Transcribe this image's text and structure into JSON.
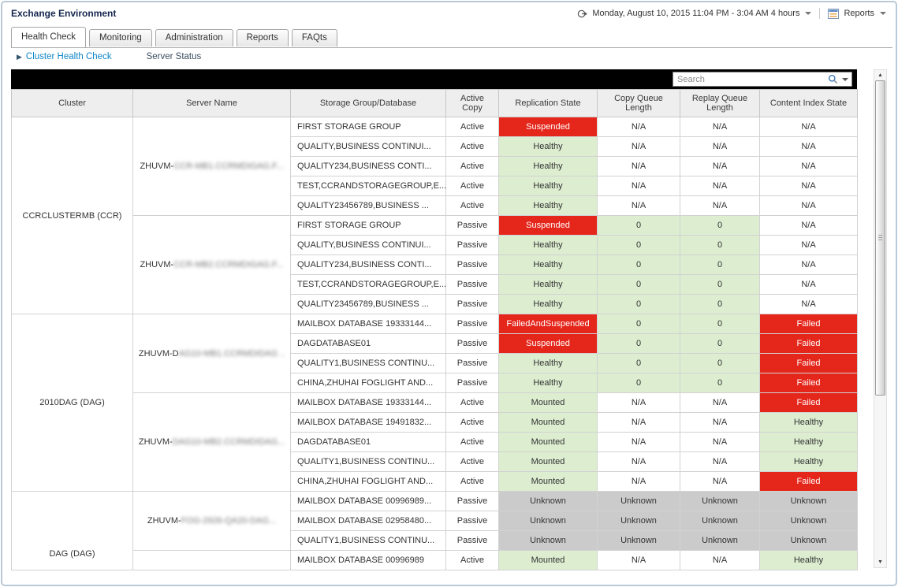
{
  "window": {
    "title": "Exchange Environment"
  },
  "topbar": {
    "time_range": "Monday, August 10, 2015 11:04 PM - 3:04 AM 4 hours",
    "reports_label": "Reports"
  },
  "tabs": {
    "items": [
      {
        "label": "Health Check",
        "active": true
      },
      {
        "label": "Monitoring",
        "active": false
      },
      {
        "label": "Administration",
        "active": false
      },
      {
        "label": "Reports",
        "active": false
      },
      {
        "label": "FAQts",
        "active": false
      }
    ]
  },
  "subnav": {
    "primary": "Cluster Health Check",
    "secondary": "Server Status"
  },
  "search": {
    "placeholder": "Search"
  },
  "status_colors": {
    "red": "#e4261b",
    "green": "#dcedd0",
    "gray": "#cbcbcb"
  },
  "table": {
    "columns": [
      "Cluster",
      "Server Name",
      "Storage Group/Database",
      "Active Copy",
      "Replication State",
      "Copy Queue Length",
      "Replay Queue Length",
      "Content Index State"
    ],
    "clusters": [
      {
        "label": "CCRCLUSTERMB (CCR)",
        "align": "middle",
        "servers": [
          {
            "prefix": "ZHUVM-",
            "blurred": "CCR-MB1.CCRMDIGAG.F...",
            "rows": [
              {
                "db": "FIRST STORAGE GROUP",
                "copy": "Active",
                "replication": {
                  "text": "Suspended",
                  "state": "red"
                },
                "copy_queue": {
                  "text": "N/A",
                  "state": "plain"
                },
                "replay_queue": {
                  "text": "N/A",
                  "state": "plain"
                },
                "content_index": {
                  "text": "N/A",
                  "state": "plain"
                }
              },
              {
                "db": "QUALITY,BUSINESS CONTINUI...",
                "copy": "Active",
                "replication": {
                  "text": "Healthy",
                  "state": "green"
                },
                "copy_queue": {
                  "text": "N/A",
                  "state": "plain"
                },
                "replay_queue": {
                  "text": "N/A",
                  "state": "plain"
                },
                "content_index": {
                  "text": "N/A",
                  "state": "plain"
                }
              },
              {
                "db": "QUALITY234,BUSINESS CONTI...",
                "copy": "Active",
                "replication": {
                  "text": "Healthy",
                  "state": "green"
                },
                "copy_queue": {
                  "text": "N/A",
                  "state": "plain"
                },
                "replay_queue": {
                  "text": "N/A",
                  "state": "plain"
                },
                "content_index": {
                  "text": "N/A",
                  "state": "plain"
                }
              },
              {
                "db": "TEST,CCRANDSTORAGEGROUP,E...",
                "copy": "Active",
                "replication": {
                  "text": "Healthy",
                  "state": "green"
                },
                "copy_queue": {
                  "text": "N/A",
                  "state": "plain"
                },
                "replay_queue": {
                  "text": "N/A",
                  "state": "plain"
                },
                "content_index": {
                  "text": "N/A",
                  "state": "plain"
                }
              },
              {
                "db": "QUALITY23456789,BUSINESS ...",
                "copy": "Active",
                "replication": {
                  "text": "Healthy",
                  "state": "green"
                },
                "copy_queue": {
                  "text": "N/A",
                  "state": "plain"
                },
                "replay_queue": {
                  "text": "N/A",
                  "state": "plain"
                },
                "content_index": {
                  "text": "N/A",
                  "state": "plain"
                }
              }
            ]
          },
          {
            "prefix": "ZHUVM-",
            "blurred": "CCR-MB2.CCRMDIGAG.F...",
            "rows": [
              {
                "db": "FIRST STORAGE GROUP",
                "copy": "Passive",
                "replication": {
                  "text": "Suspended",
                  "state": "red"
                },
                "copy_queue": {
                  "text": "0",
                  "state": "green"
                },
                "replay_queue": {
                  "text": "0",
                  "state": "green"
                },
                "content_index": {
                  "text": "N/A",
                  "state": "plain"
                }
              },
              {
                "db": "QUALITY,BUSINESS CONTINUI...",
                "copy": "Passive",
                "replication": {
                  "text": "Healthy",
                  "state": "green"
                },
                "copy_queue": {
                  "text": "0",
                  "state": "green"
                },
                "replay_queue": {
                  "text": "0",
                  "state": "green"
                },
                "content_index": {
                  "text": "N/A",
                  "state": "plain"
                }
              },
              {
                "db": "QUALITY234,BUSINESS CONTI...",
                "copy": "Passive",
                "replication": {
                  "text": "Healthy",
                  "state": "green"
                },
                "copy_queue": {
                  "text": "0",
                  "state": "green"
                },
                "replay_queue": {
                  "text": "0",
                  "state": "green"
                },
                "content_index": {
                  "text": "N/A",
                  "state": "plain"
                }
              },
              {
                "db": "TEST,CCRANDSTORAGEGROUP,E...",
                "copy": "Passive",
                "replication": {
                  "text": "Healthy",
                  "state": "green"
                },
                "copy_queue": {
                  "text": "0",
                  "state": "green"
                },
                "replay_queue": {
                  "text": "0",
                  "state": "green"
                },
                "content_index": {
                  "text": "N/A",
                  "state": "plain"
                }
              },
              {
                "db": "QUALITY23456789,BUSINESS ...",
                "copy": "Passive",
                "replication": {
                  "text": "Healthy",
                  "state": "green"
                },
                "copy_queue": {
                  "text": "0",
                  "state": "green"
                },
                "replay_queue": {
                  "text": "0",
                  "state": "green"
                },
                "content_index": {
                  "text": "N/A",
                  "state": "plain"
                }
              }
            ]
          }
        ]
      },
      {
        "label": "2010DAG (DAG)",
        "align": "middle",
        "servers": [
          {
            "prefix": "ZHUVM-D",
            "blurred": "AG10-MB1.CCRMDIDAG ..",
            "rows": [
              {
                "db": "MAILBOX DATABASE 19333144...",
                "copy": "Passive",
                "replication": {
                  "text": "FailedAndSuspended",
                  "state": "red"
                },
                "copy_queue": {
                  "text": "0",
                  "state": "green"
                },
                "replay_queue": {
                  "text": "0",
                  "state": "green"
                },
                "content_index": {
                  "text": "Failed",
                  "state": "red"
                }
              },
              {
                "db": "DAGDATABASE01",
                "copy": "Passive",
                "replication": {
                  "text": "Suspended",
                  "state": "red"
                },
                "copy_queue": {
                  "text": "0",
                  "state": "green"
                },
                "replay_queue": {
                  "text": "0",
                  "state": "green"
                },
                "content_index": {
                  "text": "Failed",
                  "state": "red"
                }
              },
              {
                "db": "QUALITY1,BUSINESS CONTINU...",
                "copy": "Passive",
                "replication": {
                  "text": "Healthy",
                  "state": "green"
                },
                "copy_queue": {
                  "text": "0",
                  "state": "green"
                },
                "replay_queue": {
                  "text": "0",
                  "state": "green"
                },
                "content_index": {
                  "text": "Failed",
                  "state": "red"
                }
              },
              {
                "db": "CHINA,ZHUHAI FOGLIGHT AND...",
                "copy": "Passive",
                "replication": {
                  "text": "Healthy",
                  "state": "green"
                },
                "copy_queue": {
                  "text": "0",
                  "state": "green"
                },
                "replay_queue": {
                  "text": "0",
                  "state": "green"
                },
                "content_index": {
                  "text": "Failed",
                  "state": "red"
                }
              }
            ]
          },
          {
            "prefix": "ZHUVM-",
            "blurred": "DAG10-MB2.CCRMDIDAG...",
            "rows": [
              {
                "db": "MAILBOX DATABASE 19333144...",
                "copy": "Active",
                "replication": {
                  "text": "Mounted",
                  "state": "green"
                },
                "copy_queue": {
                  "text": "N/A",
                  "state": "plain"
                },
                "replay_queue": {
                  "text": "N/A",
                  "state": "plain"
                },
                "content_index": {
                  "text": "Failed",
                  "state": "red"
                }
              },
              {
                "db": "MAILBOX DATABASE 19491832...",
                "copy": "Active",
                "replication": {
                  "text": "Mounted",
                  "state": "green"
                },
                "copy_queue": {
                  "text": "N/A",
                  "state": "plain"
                },
                "replay_queue": {
                  "text": "N/A",
                  "state": "plain"
                },
                "content_index": {
                  "text": "Healthy",
                  "state": "green"
                }
              },
              {
                "db": "DAGDATABASE01",
                "copy": "Active",
                "replication": {
                  "text": "Mounted",
                  "state": "green"
                },
                "copy_queue": {
                  "text": "N/A",
                  "state": "plain"
                },
                "replay_queue": {
                  "text": "N/A",
                  "state": "plain"
                },
                "content_index": {
                  "text": "Healthy",
                  "state": "green"
                }
              },
              {
                "db": "QUALITY1,BUSINESS CONTINU...",
                "copy": "Active",
                "replication": {
                  "text": "Mounted",
                  "state": "green"
                },
                "copy_queue": {
                  "text": "N/A",
                  "state": "plain"
                },
                "replay_queue": {
                  "text": "N/A",
                  "state": "plain"
                },
                "content_index": {
                  "text": "Healthy",
                  "state": "green"
                }
              },
              {
                "db": "CHINA,ZHUHAI FOGLIGHT AND...",
                "copy": "Active",
                "replication": {
                  "text": "Mounted",
                  "state": "green"
                },
                "copy_queue": {
                  "text": "N/A",
                  "state": "plain"
                },
                "replay_queue": {
                  "text": "N/A",
                  "state": "plain"
                },
                "content_index": {
                  "text": "Failed",
                  "state": "red"
                }
              }
            ]
          }
        ]
      },
      {
        "label": "DAG (DAG)",
        "align": "bottom",
        "servers": [
          {
            "prefix": "ZHUVM-",
            "blurred": "FOG-2926-QA20-DAG...",
            "rows": [
              {
                "db": "MAILBOX DATABASE 00996989...",
                "copy": "Passive",
                "replication": {
                  "text": "Unknown",
                  "state": "gray"
                },
                "copy_queue": {
                  "text": "Unknown",
                  "state": "gray"
                },
                "replay_queue": {
                  "text": "Unknown",
                  "state": "gray"
                },
                "content_index": {
                  "text": "Unknown",
                  "state": "gray"
                }
              },
              {
                "db": "MAILBOX DATABASE 02958480...",
                "copy": "Passive",
                "replication": {
                  "text": "Unknown",
                  "state": "gray"
                },
                "copy_queue": {
                  "text": "Unknown",
                  "state": "gray"
                },
                "replay_queue": {
                  "text": "Unknown",
                  "state": "gray"
                },
                "content_index": {
                  "text": "Unknown",
                  "state": "gray"
                }
              },
              {
                "db": "QUALITY1,BUSINESS CONTINU...",
                "copy": "Passive",
                "replication": {
                  "text": "Unknown",
                  "state": "gray"
                },
                "copy_queue": {
                  "text": "Unknown",
                  "state": "gray"
                },
                "replay_queue": {
                  "text": "Unknown",
                  "state": "gray"
                },
                "content_index": {
                  "text": "Unknown",
                  "state": "gray"
                }
              }
            ]
          },
          {
            "prefix": "",
            "blurred": "",
            "rows": [
              {
                "db": "MAILBOX DATABASE 00996989",
                "copy": "Active",
                "replication": {
                  "text": "Mounted",
                  "state": "green"
                },
                "copy_queue": {
                  "text": "N/A",
                  "state": "plain"
                },
                "replay_queue": {
                  "text": "N/A",
                  "state": "plain"
                },
                "content_index": {
                  "text": "Healthy",
                  "state": "green"
                }
              }
            ]
          }
        ]
      }
    ]
  }
}
